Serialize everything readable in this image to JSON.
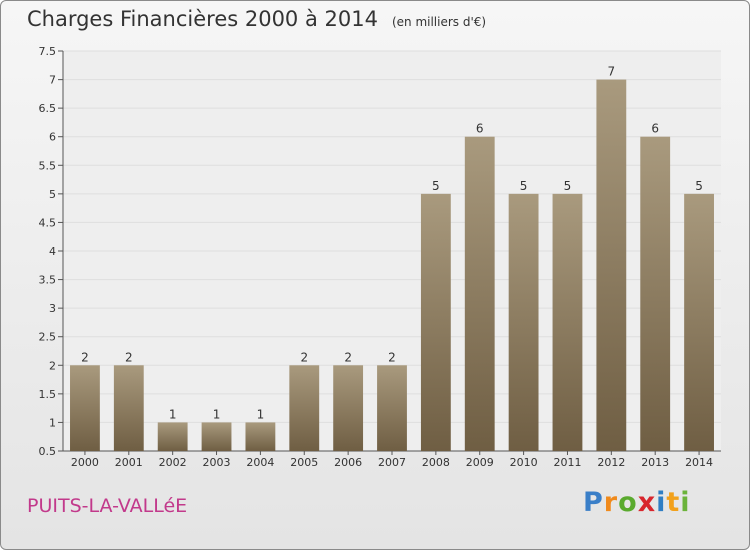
{
  "chart_title": "Charges Financières 2000 à 2014",
  "chart_subtitle": "(en milliers d'€)",
  "place_name": "PUITS-LA-VALLéE",
  "brand": {
    "letters": [
      "P",
      "r",
      "o",
      "x",
      "i",
      "t",
      "i"
    ],
    "colors": [
      "#3a7fc8",
      "#f08a1c",
      "#5aaa2e",
      "#d8262d",
      "#2f7ec4",
      "#f2a11b",
      "#6bb33a"
    ]
  },
  "colors": {
    "bar_top": "#a99a7e",
    "bar_bottom": "#6f5e43",
    "axis": "#555555",
    "grid": "#dedede",
    "text": "#333333",
    "place": "#c2398b"
  },
  "chart_data": {
    "type": "bar",
    "title": "Charges Financières 2000 à 2014",
    "subtitle": "(en milliers d'€)",
    "xlabel": "",
    "ylabel": "",
    "categories": [
      "2000",
      "2001",
      "2002",
      "2003",
      "2004",
      "2005",
      "2006",
      "2007",
      "2008",
      "2009",
      "2010",
      "2011",
      "2012",
      "2013",
      "2014"
    ],
    "values": [
      2,
      2,
      1,
      1,
      1,
      2,
      2,
      2,
      5,
      6,
      5,
      5,
      7,
      6,
      5
    ],
    "data_labels": [
      "2",
      "2",
      "1",
      "1",
      "1",
      "2",
      "2",
      "2",
      "5",
      "6",
      "5",
      "5",
      "7",
      "6",
      "5"
    ],
    "ylim": [
      0.5,
      7.5
    ],
    "yticks": [
      0.5,
      1,
      1.5,
      2,
      2.5,
      3,
      3.5,
      4,
      4.5,
      5,
      5.5,
      6,
      6.5,
      7,
      7.5
    ],
    "ytick_labels": [
      "0.5",
      "1",
      "1.5",
      "2",
      "2.5",
      "3",
      "3.5",
      "4",
      "4.5",
      "5",
      "5.5",
      "6",
      "6.5",
      "7",
      "7.5"
    ],
    "grid": true,
    "legend": "none"
  }
}
